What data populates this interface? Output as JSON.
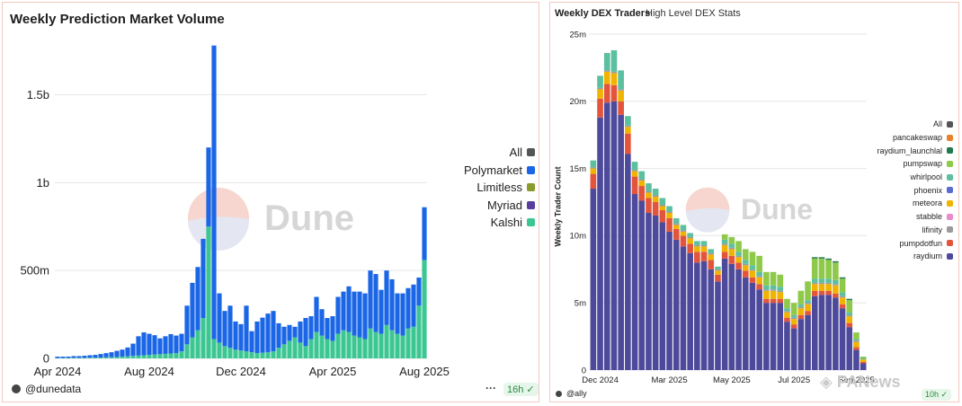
{
  "left": {
    "title": "Weekly Prediction Market Volume",
    "footer_user": "@dunedata",
    "refresh_badge": "16h",
    "more_label": "···",
    "watermark": "Dune",
    "legend": [
      {
        "name": "All",
        "color": "#555555"
      },
      {
        "name": "Polymarket",
        "color": "#1a66e6"
      },
      {
        "name": "Limitless",
        "color": "#8a9a2b"
      },
      {
        "name": "Myriad",
        "color": "#5a3e9e"
      },
      {
        "name": "Kalshi",
        "color": "#3cc792"
      }
    ]
  },
  "right": {
    "title": "Weekly DEX Traders",
    "subtitle": "High Level DEX Stats",
    "footer_user": "@ally",
    "refresh_badge": "10h",
    "watermark": "Dune",
    "overlay_text": "PANews",
    "legend": [
      {
        "name": "All",
        "color": "#555555"
      },
      {
        "name": "pancakeswap",
        "color": "#e8822a"
      },
      {
        "name": "raydium_launchlal",
        "color": "#1f7a4d"
      },
      {
        "name": "pumpswap",
        "color": "#8fc94a"
      },
      {
        "name": "whirlpool",
        "color": "#5bbfa0"
      },
      {
        "name": "phoenix",
        "color": "#5b6bd6"
      },
      {
        "name": "meteora",
        "color": "#f0b400"
      },
      {
        "name": "stabble",
        "color": "#e98ad0"
      },
      {
        "name": "lifinity",
        "color": "#9a9a9a"
      },
      {
        "name": "pumpdotfun",
        "color": "#e2553c"
      },
      {
        "name": "raydium",
        "color": "#4e4a9b"
      }
    ]
  },
  "chart_data": [
    {
      "type": "bar",
      "stacked": true,
      "title": "Weekly Prediction Market Volume",
      "xlabel": "",
      "ylabel": "",
      "ylim": [
        0,
        1850000000
      ],
      "yticks": [
        0,
        500000000,
        1000000000,
        1500000000
      ],
      "ytick_labels": [
        "0",
        "500m",
        "1b",
        "1.5b"
      ],
      "xtick_labels": [
        "Apr 2024",
        "Aug 2024",
        "Dec 2024",
        "Apr 2025",
        "Aug 2025"
      ],
      "xtick_index": [
        0,
        17,
        34,
        51,
        68
      ],
      "grid": true,
      "legend_position": "right",
      "series": [
        {
          "name": "Kalshi",
          "color": "#3cc792",
          "values": [
            2000000,
            2000000,
            2000000,
            3000000,
            3000000,
            3000000,
            4000000,
            4000000,
            5000000,
            6000000,
            7000000,
            8000000,
            10000000,
            12000000,
            14000000,
            16000000,
            18000000,
            20000000,
            22000000,
            24000000,
            26000000,
            28000000,
            30000000,
            40000000,
            80000000,
            120000000,
            160000000,
            230000000,
            750000000,
            110000000,
            90000000,
            70000000,
            60000000,
            50000000,
            45000000,
            40000000,
            35000000,
            30000000,
            32000000,
            35000000,
            40000000,
            60000000,
            80000000,
            100000000,
            120000000,
            90000000,
            70000000,
            110000000,
            150000000,
            130000000,
            110000000,
            100000000,
            140000000,
            160000000,
            150000000,
            130000000,
            120000000,
            110000000,
            170000000,
            150000000,
            140000000,
            190000000,
            160000000,
            140000000,
            130000000,
            170000000,
            180000000,
            300000000,
            560000000
          ]
        },
        {
          "name": "Polymarket",
          "color": "#1a66e6",
          "values": [
            8000000,
            8000000,
            8000000,
            10000000,
            10000000,
            12000000,
            14000000,
            16000000,
            20000000,
            24000000,
            28000000,
            35000000,
            40000000,
            50000000,
            70000000,
            110000000,
            130000000,
            120000000,
            110000000,
            90000000,
            100000000,
            110000000,
            100000000,
            100000000,
            220000000,
            310000000,
            360000000,
            450000000,
            450000000,
            1670000000,
            280000000,
            200000000,
            240000000,
            160000000,
            150000000,
            260000000,
            120000000,
            180000000,
            200000000,
            220000000,
            230000000,
            140000000,
            100000000,
            90000000,
            60000000,
            120000000,
            160000000,
            130000000,
            200000000,
            150000000,
            120000000,
            140000000,
            210000000,
            220000000,
            260000000,
            250000000,
            260000000,
            260000000,
            330000000,
            330000000,
            250000000,
            310000000,
            290000000,
            230000000,
            240000000,
            230000000,
            240000000,
            160000000,
            300000000
          ]
        }
      ]
    },
    {
      "type": "bar",
      "stacked": true,
      "title": "Weekly DEX Traders",
      "subtitle": "High Level DEX Stats",
      "xlabel": "",
      "ylabel": "Weekly Trader Count",
      "ylim": [
        0,
        25000000
      ],
      "yticks": [
        0,
        5000000,
        10000000,
        15000000,
        20000000,
        25000000
      ],
      "ytick_labels": [
        "0",
        "5m",
        "10m",
        "15m",
        "20m",
        "25m"
      ],
      "xtick_labels": [
        "Dec 2024",
        "Mar 2025",
        "May 2025",
        "Jul 2025",
        "Sep 2025"
      ],
      "xtick_index": [
        1,
        11,
        20,
        29,
        38
      ],
      "grid": true,
      "legend_position": "right",
      "series": [
        {
          "name": "raydium",
          "color": "#4e4a9b",
          "values": [
            13500000,
            18800000,
            19900000,
            20000000,
            19000000,
            16100000,
            13100000,
            12600000,
            11700000,
            11500000,
            11000000,
            10300000,
            9700000,
            9200000,
            8700000,
            8000000,
            8100000,
            7500000,
            6600000,
            8300000,
            7900000,
            7500000,
            6900000,
            6500000,
            6000000,
            5000000,
            5000000,
            5000000,
            3600000,
            3100000,
            3800000,
            4100000,
            5500000,
            5600000,
            5600000,
            5400000,
            4600000,
            3200000,
            1500000,
            500000
          ]
        },
        {
          "name": "pumpdotfun",
          "color": "#e2553c",
          "values": [
            1100000,
            1400000,
            1400000,
            1200000,
            1000000,
            1500000,
            1300000,
            1100000,
            1100000,
            1000000,
            900000,
            1000000,
            800000,
            800000,
            700000,
            800000,
            700000,
            700000,
            500000,
            500000,
            600000,
            500000,
            500000,
            400000,
            400000,
            300000,
            300000,
            300000,
            300000,
            300000,
            300000,
            300000,
            400000,
            300000,
            300000,
            300000,
            300000,
            300000,
            200000,
            100000
          ]
        },
        {
          "name": "meteora",
          "color": "#f0b400",
          "values": [
            400000,
            700000,
            900000,
            900000,
            800000,
            500000,
            400000,
            400000,
            400000,
            400000,
            300000,
            400000,
            300000,
            300000,
            400000,
            400000,
            400000,
            400000,
            300000,
            500000,
            500000,
            400000,
            400000,
            500000,
            500000,
            600000,
            600000,
            500000,
            400000,
            400000,
            500000,
            500000,
            500000,
            500000,
            500000,
            600000,
            500000,
            500000,
            400000,
            200000
          ]
        },
        {
          "name": "lifinity",
          "color": "#9a9a9a",
          "values": [
            100000,
            100000,
            100000,
            100000,
            100000,
            100000,
            100000,
            100000,
            100000,
            100000,
            100000,
            100000,
            100000,
            100000,
            100000,
            100000,
            100000,
            100000,
            100000,
            100000,
            100000,
            100000,
            100000,
            100000,
            100000,
            100000,
            100000,
            100000,
            100000,
            100000,
            100000,
            100000,
            100000,
            100000,
            100000,
            100000,
            100000,
            100000,
            100000,
            0
          ]
        },
        {
          "name": "whirlpool",
          "color": "#5bbfa0",
          "values": [
            500000,
            900000,
            1300000,
            1600000,
            1400000,
            700000,
            600000,
            600000,
            600000,
            500000,
            500000,
            400000,
            400000,
            400000,
            300000,
            300000,
            300000,
            300000,
            200000,
            300000,
            300000,
            300000,
            300000,
            300000,
            300000,
            300000,
            300000,
            300000,
            200000,
            200000,
            200000,
            200000,
            300000,
            300000,
            300000,
            300000,
            300000,
            200000,
            100000,
            100000
          ]
        },
        {
          "name": "pumpswap",
          "color": "#8fc94a",
          "values": [
            0,
            0,
            0,
            0,
            0,
            0,
            0,
            0,
            0,
            0,
            0,
            0,
            0,
            0,
            0,
            0,
            0,
            0,
            0,
            400000,
            500000,
            800000,
            800000,
            1000000,
            1200000,
            1000000,
            1000000,
            900000,
            700000,
            900000,
            1000000,
            1400000,
            1500000,
            1500000,
            1400000,
            1300000,
            1000000,
            900000,
            500000,
            100000
          ]
        },
        {
          "name": "raydium_launchlal",
          "color": "#1f7a4d",
          "values": [
            0,
            0,
            0,
            0,
            0,
            0,
            0,
            0,
            0,
            0,
            0,
            0,
            0,
            0,
            0,
            0,
            0,
            0,
            0,
            0,
            0,
            0,
            0,
            0,
            0,
            0,
            0,
            0,
            0,
            0,
            0,
            0,
            100000,
            100000,
            100000,
            100000,
            100000,
            100000,
            0,
            0
          ]
        }
      ]
    }
  ]
}
